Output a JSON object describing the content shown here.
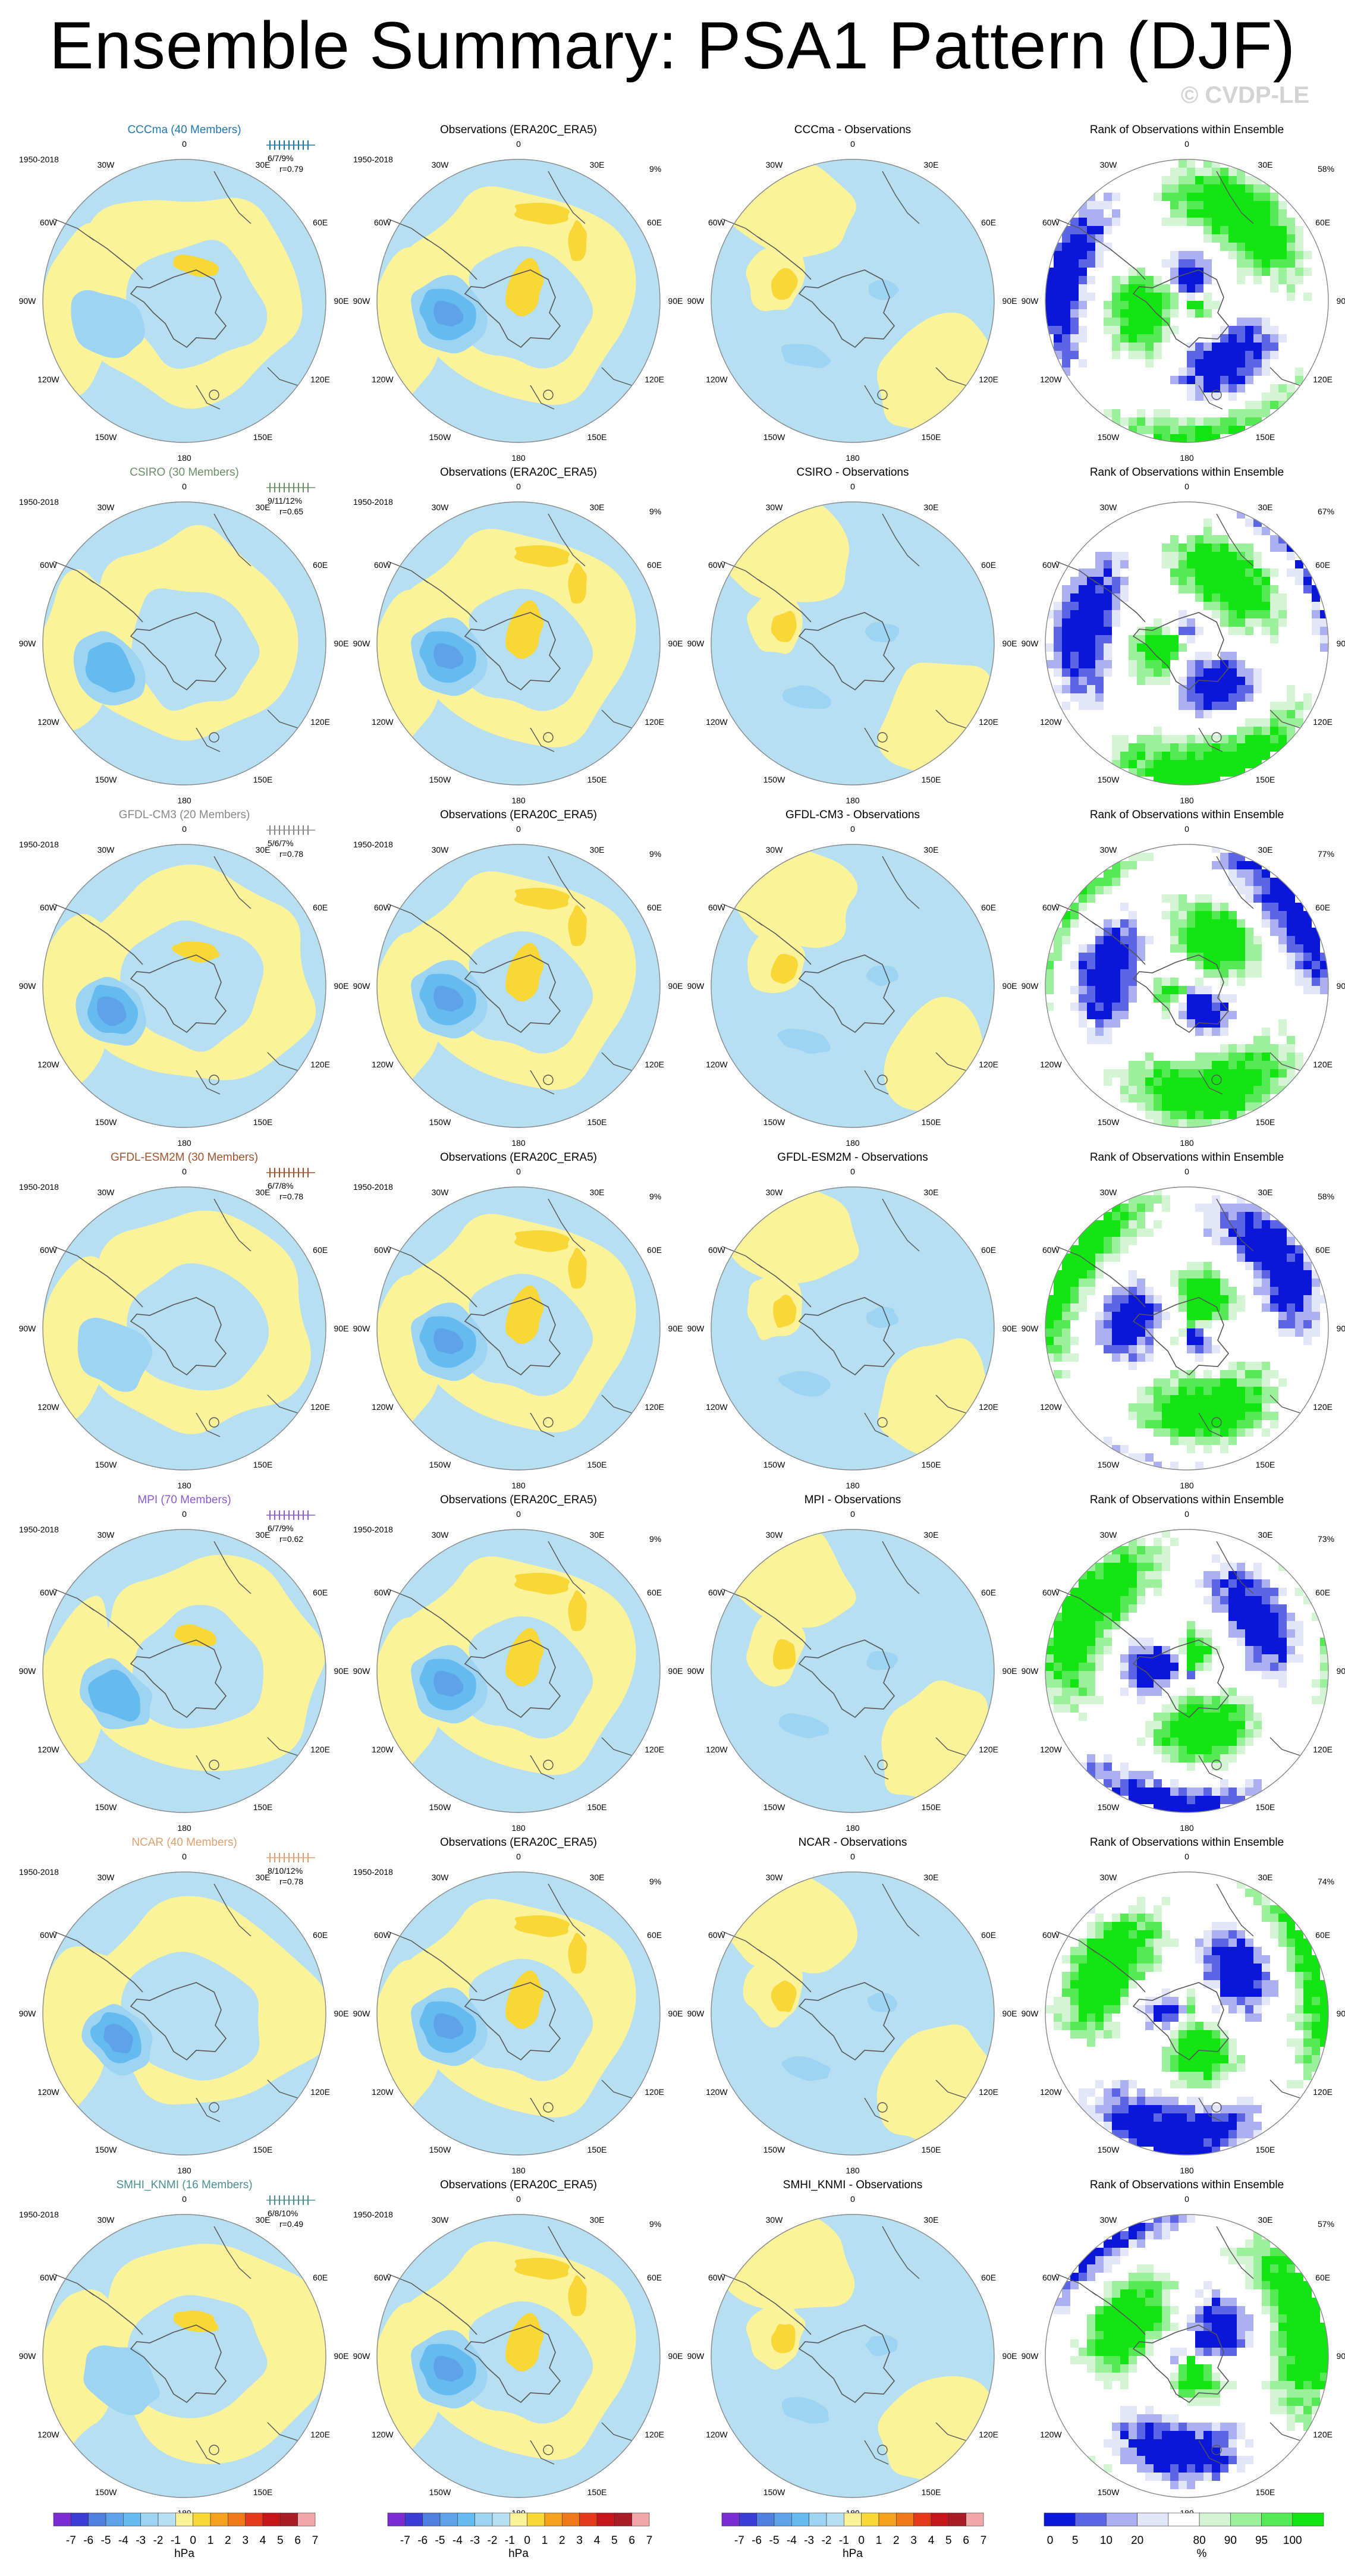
{
  "title": "Ensemble Summary: PSA1 Pattern (DJF)",
  "watermark": "© CVDP-LE",
  "years": "1950-2018",
  "lon_labels": [
    "0",
    "30E",
    "60E",
    "90E",
    "120E",
    "150E",
    "180",
    "150W",
    "120W",
    "90W",
    "60W",
    "30W"
  ],
  "obs_title": "Observations (ERA20C_ERA5)",
  "obs_pct": "9%",
  "rank_title": "Rank of Observations within Ensemble",
  "colors": {
    "neg": [
      "#7b2bd4",
      "#3b3bd6",
      "#4f7fdf",
      "#5ea3ea",
      "#65bbef",
      "#9dd4f3",
      "#b6dff1"
    ],
    "pos": [
      "#fbf29a",
      "#f9d737",
      "#f4a21e",
      "#ef7818",
      "#e4391b",
      "#c6161b",
      "#a81d25",
      "#f2a8a8"
    ],
    "rank": [
      "#0a16d8",
      "#5c66e5",
      "#aab0f0",
      "#e3e6f9",
      "#ffffff",
      "#d4f5d4",
      "#9cf09c",
      "#55ea55",
      "#12e512"
    ],
    "model_names": [
      "#1f77b4",
      "#6b8e6b",
      "#888888",
      "#a0522d",
      "#8a5ad6",
      "#e0a070",
      "#4a9090"
    ]
  },
  "rows": [
    {
      "model": "CCCma (40 Members)",
      "diff_title": "CCCma - Observations",
      "stats_pct": "6/7/9%",
      "stats_r": "r=0.79",
      "rank_pct": "58%"
    },
    {
      "model": "CSIRO (30 Members)",
      "diff_title": "CSIRO - Observations",
      "stats_pct": "9/11/12%",
      "stats_r": "r=0.65",
      "rank_pct": "67%"
    },
    {
      "model": "GFDL-CM3 (20 Members)",
      "diff_title": "GFDL-CM3 - Observations",
      "stats_pct": "5/6/7%",
      "stats_r": "r=0.78",
      "rank_pct": "77%"
    },
    {
      "model": "GFDL-ESM2M (30 Members)",
      "diff_title": "GFDL-ESM2M - Observations",
      "stats_pct": "6/7/8%",
      "stats_r": "r=0.78",
      "rank_pct": "58%"
    },
    {
      "model": "MPI (70 Members)",
      "diff_title": "MPI - Observations",
      "stats_pct": "6/7/9%",
      "stats_r": "r=0.62",
      "rank_pct": "73%"
    },
    {
      "model": "NCAR (40 Members)",
      "diff_title": "NCAR - Observations",
      "stats_pct": "8/10/12%",
      "stats_r": "r=0.78",
      "rank_pct": "74%"
    },
    {
      "model": "SMHI_KNMI (16 Members)",
      "diff_title": "SMHI_KNMI - Observations",
      "stats_pct": "6/8/10%",
      "stats_r": "r=0.49",
      "rank_pct": "57%"
    }
  ],
  "colorbar_hpa": {
    "ticks": [
      "-7",
      "-6",
      "-5",
      "-4",
      "-3",
      "-2",
      "-1",
      "0",
      "1",
      "2",
      "3",
      "4",
      "5",
      "6",
      "7"
    ],
    "unit": "hPa"
  },
  "colorbar_rank": {
    "ticks": [
      "0",
      "5",
      "10",
      "20",
      "80",
      "90",
      "95",
      "100"
    ],
    "unit": "%"
  },
  "chart_data": {
    "type": "heatmap",
    "description_units": "polar stereographic maps of DJF PSA1 pattern (hPa) and rank of observations (%)",
    "contour_levels_hpa": [
      -7,
      -6,
      -5,
      -4,
      -3,
      -2,
      -1,
      0,
      1,
      2,
      3,
      4,
      5,
      6,
      7
    ],
    "rank_levels_pct": [
      0,
      5,
      10,
      20,
      80,
      90,
      95,
      100
    ],
    "rows": [
      {
        "model": "CCCma",
        "pattern_corr": 0.79,
        "pct_variance": [
          6,
          7,
          9
        ],
        "rank_pct": 58
      },
      {
        "model": "CSIRO",
        "pattern_corr": 0.65,
        "pct_variance": [
          9,
          11,
          12
        ],
        "rank_pct": 67
      },
      {
        "model": "GFDL-CM3",
        "pattern_corr": 0.78,
        "pct_variance": [
          5,
          6,
          7
        ],
        "rank_pct": 77
      },
      {
        "model": "GFDL-ESM2M",
        "pattern_corr": 0.78,
        "pct_variance": [
          6,
          7,
          8
        ],
        "rank_pct": 58
      },
      {
        "model": "MPI",
        "pattern_corr": 0.62,
        "pct_variance": [
          6,
          7,
          9
        ],
        "rank_pct": 73
      },
      {
        "model": "NCAR",
        "pattern_corr": 0.78,
        "pct_variance": [
          8,
          10,
          12
        ],
        "rank_pct": 74
      },
      {
        "model": "SMHI_KNMI",
        "pattern_corr": 0.49,
        "pct_variance": [
          6,
          8,
          10
        ],
        "rank_pct": 57
      }
    ],
    "observations": {
      "name": "ERA20C_ERA5",
      "pct_variance": 9
    }
  }
}
